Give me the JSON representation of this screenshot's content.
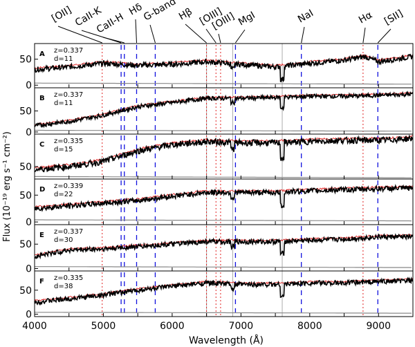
{
  "chart_data": {
    "type": "line",
    "xlabel": "Wavelength (Å)",
    "ylabel": "Flux (10⁻¹⁹ erg s⁻¹ cm⁻²)",
    "xlim": [
      4000,
      9500
    ],
    "x_ticks": [
      4000,
      5000,
      6000,
      7000,
      8000,
      9000
    ],
    "y_ticks": [
      0,
      50
    ],
    "line_labels": [
      "[OII]",
      "CaII-K",
      "CaII-H",
      "Hδ",
      "G-band",
      "Hβ",
      "[OIII]",
      "[OIII]",
      "MgI",
      "NaI",
      "Hα",
      "[SII]"
    ],
    "line_positions": [
      4983,
      5258,
      5305,
      5483,
      5754,
      6499,
      6637,
      6704,
      6920,
      7878,
      8775,
      8990
    ],
    "gray_lines": [
      6500,
      6880,
      7600
    ],
    "series_legend": [
      "observed spectrum (black)",
      "model fit (red)",
      "noise (gray)"
    ],
    "panels": [
      {
        "id": "A",
        "z": "z=0.337",
        "d": "d=11",
        "ylim": [
          -5,
          80
        ],
        "x": [
          4000,
          4500,
          5000,
          5500,
          6000,
          6500,
          7000,
          7500,
          8000,
          8500,
          8800,
          9000,
          9500
        ],
        "values": [
          30,
          35,
          42,
          38,
          40,
          45,
          40,
          35,
          42,
          48,
          55,
          45,
          55
        ]
      },
      {
        "id": "B",
        "z": "z=0.337",
        "d": "d=11",
        "ylim": [
          -5,
          105
        ],
        "x": [
          4000,
          4500,
          5000,
          5500,
          6000,
          6500,
          7000,
          7500,
          8000,
          8500,
          9000,
          9500
        ],
        "values": [
          15,
          25,
          40,
          60,
          70,
          80,
          80,
          82,
          85,
          85,
          87,
          90
        ]
      },
      {
        "id": "C",
        "z": "z=0.335",
        "d": "d=15",
        "ylim": [
          30,
          102
        ],
        "x": [
          4000,
          4500,
          5000,
          5500,
          6000,
          6500,
          7000,
          7500,
          8000,
          8500,
          9000,
          9500
        ],
        "values": [
          45,
          50,
          58,
          75,
          85,
          90,
          88,
          88,
          90,
          92,
          92,
          95
        ]
      },
      {
        "id": "D",
        "z": "z=0.339",
        "d": "d=22",
        "ylim": [
          -5,
          80
        ],
        "x": [
          4000,
          4500,
          5000,
          5500,
          6000,
          6500,
          7000,
          7500,
          8000,
          8500,
          9000,
          9500
        ],
        "values": [
          25,
          30,
          35,
          40,
          48,
          55,
          55,
          55,
          58,
          60,
          62,
          63
        ]
      },
      {
        "id": "E",
        "z": "z=0.337",
        "d": "d=30",
        "ylim": [
          -5,
          90
        ],
        "x": [
          4000,
          4500,
          5000,
          5500,
          6000,
          6500,
          7000,
          7500,
          8000,
          8500,
          9000,
          9500
        ],
        "values": [
          25,
          38,
          40,
          45,
          50,
          55,
          55,
          55,
          58,
          60,
          65,
          65
        ]
      },
      {
        "id": "F",
        "z": "z=0.335",
        "d": "d=38",
        "ylim": [
          -5,
          90
        ],
        "x": [
          4000,
          4500,
          5000,
          5500,
          6000,
          6500,
          7000,
          7500,
          8000,
          8500,
          9000,
          9500
        ],
        "values": [
          25,
          32,
          40,
          50,
          58,
          65,
          62,
          62,
          65,
          65,
          68,
          70
        ]
      }
    ]
  }
}
